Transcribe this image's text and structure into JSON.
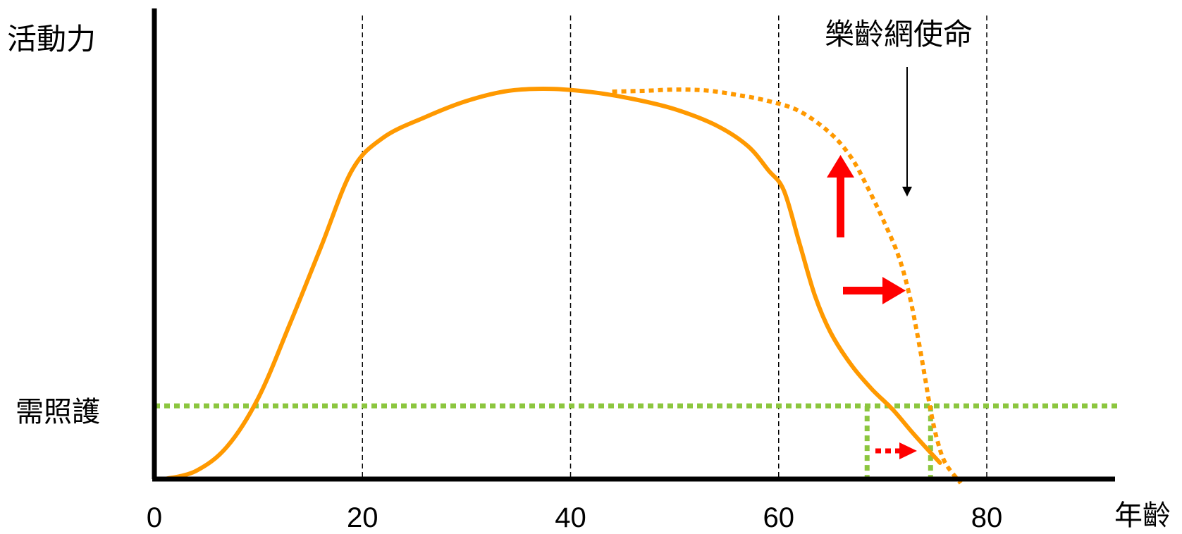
{
  "chart_data": {
    "type": "line",
    "title": "",
    "ylabel": "活動力",
    "xlabel": "年齡",
    "x_ticks": [
      "0",
      "20",
      "40",
      "60",
      "80"
    ],
    "xlim": [
      0,
      90
    ],
    "ylim": [
      0,
      100
    ],
    "grid": {
      "vertical_dashed_at": [
        20,
        40,
        60,
        80
      ]
    },
    "threshold": {
      "label": "需照護",
      "y": 18,
      "style": "dotted",
      "color": "#8cc63f"
    },
    "series": [
      {
        "style": "solid",
        "color": "#ff9900",
        "x": [
          1,
          4,
          7,
          10,
          13,
          16,
          19,
          22,
          26,
          30,
          34,
          38,
          42,
          46,
          50,
          54,
          57,
          59,
          60.5,
          62,
          63.5,
          65,
          67,
          69,
          71,
          73,
          75.5
        ],
        "y": [
          0,
          2,
          8,
          20,
          38,
          57,
          76,
          84,
          89,
          93,
          95.5,
          96,
          95.2,
          93.5,
          91,
          87,
          82,
          76,
          71,
          58,
          45,
          36,
          28,
          22,
          17,
          11,
          4
        ]
      },
      {
        "style": "dotted",
        "color": "#ff9900",
        "x": [
          44,
          47,
          50,
          53,
          56,
          59,
          62,
          65,
          67,
          68.5,
          70,
          71.5,
          72.5,
          73.3,
          74,
          74.6,
          75.2,
          76,
          77.5
        ],
        "y": [
          95.3,
          95.5,
          95.8,
          95.6,
          94.5,
          93,
          90.5,
          85,
          79,
          72,
          64,
          55,
          46,
          36,
          26,
          17,
          10,
          4,
          -1
        ]
      }
    ],
    "markers": [
      {
        "label": "",
        "type": "vertical-dotted",
        "x": 68.5,
        "color": "#8cc63f"
      },
      {
        "label": "",
        "type": "vertical-dotted",
        "x": 74.6,
        "color": "#8cc63f"
      }
    ],
    "annotations": {
      "mission_label": "樂齡網使命",
      "arrows": [
        {
          "direction": "up",
          "style": "solid",
          "color": "#ff0000"
        },
        {
          "direction": "right",
          "style": "solid",
          "color": "#ff0000"
        },
        {
          "direction": "right",
          "style": "dotted",
          "color": "#ff0000"
        },
        {
          "direction": "down",
          "style": "solid",
          "color": "#000000"
        }
      ]
    }
  }
}
